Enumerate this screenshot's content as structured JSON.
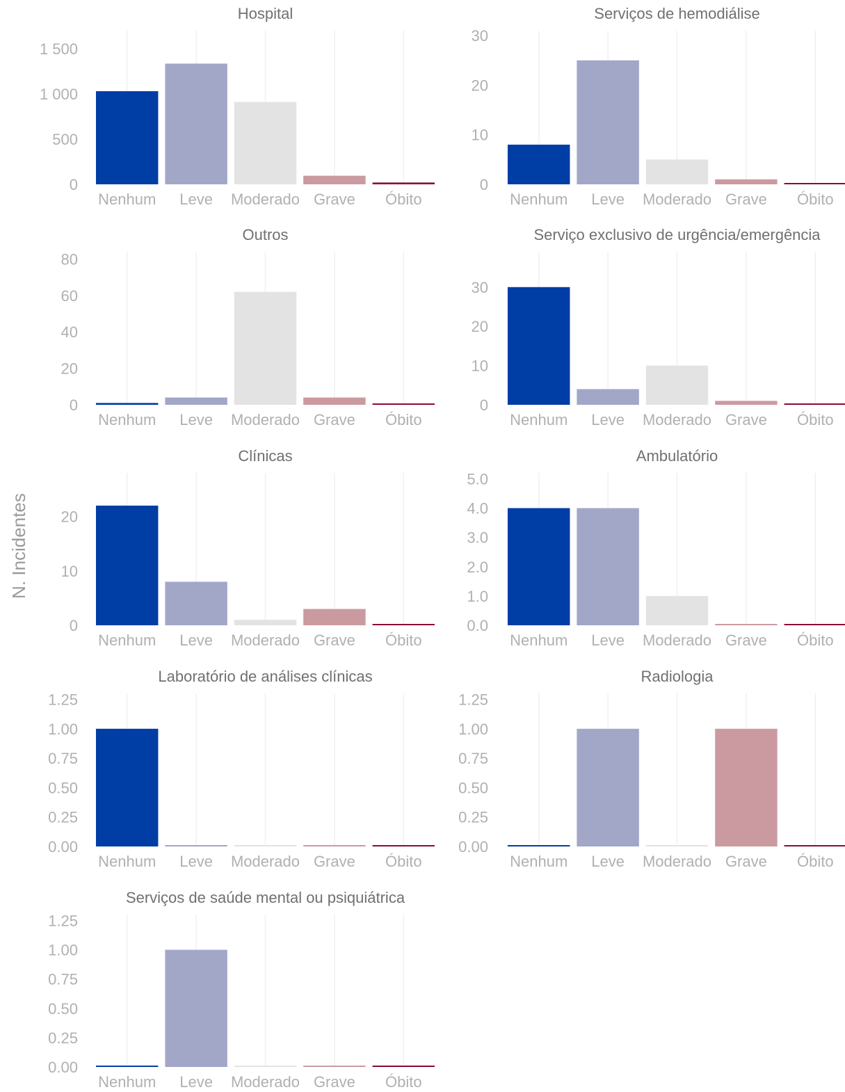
{
  "ylabel": "N. Incidentes",
  "colors": {
    "Nenhum": "#003da5",
    "Leve": "#a2a7c8",
    "Moderado": "#e3e3e3",
    "Grave": "#cb9aa1",
    "Óbito": "#8b0a32"
  },
  "chart_data": [
    {
      "type": "bar",
      "title": "Hospital",
      "categories": [
        "Nenhum",
        "Leve",
        "Moderado",
        "Grave",
        "Óbito"
      ],
      "values": [
        1030,
        1335,
        910,
        95,
        20
      ],
      "ylim": [
        0,
        1700
      ],
      "yticks": [
        0,
        500,
        1000,
        1500
      ],
      "ytick_labels": [
        "0",
        "500",
        "1 000",
        "1 500"
      ]
    },
    {
      "type": "bar",
      "title": "Serviços de hemodiálise",
      "categories": [
        "Nenhum",
        "Leve",
        "Moderado",
        "Grave",
        "Óbito"
      ],
      "values": [
        8,
        25,
        5,
        1,
        0
      ],
      "ylim": [
        0,
        31
      ],
      "yticks": [
        0,
        10,
        20,
        30
      ],
      "ytick_labels": [
        "0",
        "10",
        "20",
        "30"
      ]
    },
    {
      "type": "bar",
      "title": "Outros",
      "categories": [
        "Nenhum",
        "Leve",
        "Moderado",
        "Grave",
        "Óbito"
      ],
      "values": [
        1,
        4,
        62,
        4,
        0
      ],
      "ylim": [
        0,
        84
      ],
      "yticks": [
        0,
        20,
        40,
        60,
        80
      ],
      "ytick_labels": [
        "0",
        "20",
        "40",
        "60",
        "80"
      ]
    },
    {
      "type": "bar",
      "title": "Serviço exclusivo de urgência/emergência",
      "categories": [
        "Nenhum",
        "Leve",
        "Moderado",
        "Grave",
        "Óbito"
      ],
      "values": [
        30,
        4,
        10,
        1,
        0
      ],
      "ylim": [
        0,
        39
      ],
      "yticks": [
        0,
        10,
        20,
        30
      ],
      "ytick_labels": [
        "0",
        "10",
        "20",
        "30"
      ]
    },
    {
      "type": "bar",
      "title": "Clínicas",
      "categories": [
        "Nenhum",
        "Leve",
        "Moderado",
        "Grave",
        "Óbito"
      ],
      "values": [
        22,
        8,
        1,
        3,
        0
      ],
      "ylim": [
        0,
        28
      ],
      "yticks": [
        0,
        10,
        20
      ],
      "ytick_labels": [
        "0",
        "10",
        "20"
      ]
    },
    {
      "type": "bar",
      "title": "Ambulatório",
      "categories": [
        "Nenhum",
        "Leve",
        "Moderado",
        "Grave",
        "Óbito"
      ],
      "values": [
        4,
        4,
        1,
        0,
        0
      ],
      "ylim": [
        0,
        5.2
      ],
      "yticks": [
        0,
        1,
        2,
        3,
        4,
        5
      ],
      "ytick_labels": [
        "0.0",
        "1.0",
        "2.0",
        "3.0",
        "4.0",
        "5.0"
      ]
    },
    {
      "type": "bar",
      "title": "Laboratório de análises clínicas",
      "categories": [
        "Nenhum",
        "Leve",
        "Moderado",
        "Grave",
        "Óbito"
      ],
      "values": [
        1,
        0,
        0,
        0,
        0
      ],
      "ylim": [
        0,
        1.3
      ],
      "yticks": [
        0,
        0.25,
        0.5,
        0.75,
        1,
        1.25
      ],
      "ytick_labels": [
        "0.00",
        "0.25",
        "0.50",
        "0.75",
        "1.00",
        "1.25"
      ]
    },
    {
      "type": "bar",
      "title": "Radiologia",
      "categories": [
        "Nenhum",
        "Leve",
        "Moderado",
        "Grave",
        "Óbito"
      ],
      "values": [
        0,
        1,
        0,
        1,
        0
      ],
      "ylim": [
        0,
        1.3
      ],
      "yticks": [
        0,
        0.25,
        0.5,
        0.75,
        1,
        1.25
      ],
      "ytick_labels": [
        "0.00",
        "0.25",
        "0.50",
        "0.75",
        "1.00",
        "1.25"
      ]
    },
    {
      "type": "bar",
      "title": "Serviços de saúde mental ou psiquiátrica",
      "categories": [
        "Nenhum",
        "Leve",
        "Moderado",
        "Grave",
        "Óbito"
      ],
      "values": [
        0,
        1,
        0,
        0,
        0
      ],
      "ylim": [
        0,
        1.3
      ],
      "yticks": [
        0,
        0.25,
        0.5,
        0.75,
        1,
        1.25
      ],
      "ytick_labels": [
        "0.00",
        "0.25",
        "0.50",
        "0.75",
        "1.00",
        "1.25"
      ]
    }
  ]
}
